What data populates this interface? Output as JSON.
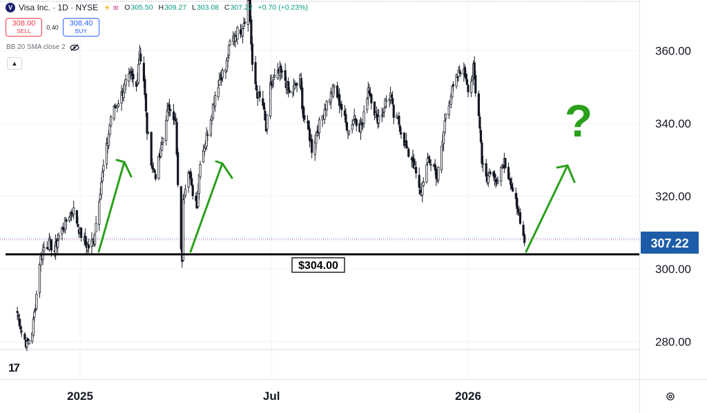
{
  "header": {
    "logo_letter": "V",
    "symbol_title": "Visa Inc. · 1D · NYSE",
    "open_label": "O",
    "open": "305.50",
    "high_label": "H",
    "high": "309.27",
    "low_label": "L",
    "low": "303.08",
    "close_label": "C",
    "close": "307.22",
    "change": "+0.70 (+0.23%)"
  },
  "trade": {
    "sell_price": "308.00",
    "sell_label": "SELL",
    "spread": "0.40",
    "buy_price": "308.40",
    "buy_label": "BUY"
  },
  "indicator": {
    "label": "BB 20 SMA close 2"
  },
  "icons": [
    "visa-logo-icon",
    "sun-icon",
    "wave-icon",
    "eye-off-icon",
    "chevron-up-icon",
    "tradingview-logo-icon",
    "settings-icon"
  ],
  "colors": {
    "up": "#089981",
    "down": "#f23645",
    "candle": "#131722",
    "arrow": "#2aa01b",
    "price_tag": "#1d5ca8"
  },
  "chart_data": {
    "type": "candlestick",
    "y_ticks": [
      "360.00",
      "340.00",
      "320.00",
      "300.00",
      "280.00"
    ],
    "ylim": [
      268,
      380
    ],
    "x_ticks": [
      "2025",
      "Jul",
      "2026"
    ],
    "x_tick_dates": [
      "2025-01-02",
      "2025-07-01",
      "2026-01-02"
    ],
    "last_price": "307.22",
    "last_price_value": 307.22,
    "support_level": 304.0,
    "support_label": "$304.00",
    "annotation_question": "?",
    "series": [
      {
        "date": "2024-11-04",
        "value": 288
      },
      {
        "date": "2024-11-08",
        "value": 283
      },
      {
        "date": "2024-11-13",
        "value": 279
      },
      {
        "date": "2024-11-18",
        "value": 283
      },
      {
        "date": "2024-11-21",
        "value": 290
      },
      {
        "date": "2024-11-25",
        "value": 302
      },
      {
        "date": "2024-11-29",
        "value": 306
      },
      {
        "date": "2024-12-04",
        "value": 307
      },
      {
        "date": "2024-12-09",
        "value": 305
      },
      {
        "date": "2024-12-13",
        "value": 309
      },
      {
        "date": "2024-12-18",
        "value": 312
      },
      {
        "date": "2024-12-23",
        "value": 315
      },
      {
        "date": "2024-12-27",
        "value": 316
      },
      {
        "date": "2025-01-02",
        "value": 310
      },
      {
        "date": "2025-01-07",
        "value": 307
      },
      {
        "date": "2025-01-10",
        "value": 306
      },
      {
        "date": "2025-01-15",
        "value": 308
      },
      {
        "date": "2025-01-21",
        "value": 322
      },
      {
        "date": "2025-01-24",
        "value": 328
      },
      {
        "date": "2025-01-28",
        "value": 335
      },
      {
        "date": "2025-01-31",
        "value": 342
      },
      {
        "date": "2025-02-05",
        "value": 345
      },
      {
        "date": "2025-02-10",
        "value": 348
      },
      {
        "date": "2025-02-14",
        "value": 351
      },
      {
        "date": "2025-02-19",
        "value": 353
      },
      {
        "date": "2025-02-24",
        "value": 350
      },
      {
        "date": "2025-02-27",
        "value": 360
      },
      {
        "date": "2025-03-03",
        "value": 352
      },
      {
        "date": "2025-03-06",
        "value": 338
      },
      {
        "date": "2025-03-11",
        "value": 328
      },
      {
        "date": "2025-03-14",
        "value": 326
      },
      {
        "date": "2025-03-19",
        "value": 332
      },
      {
        "date": "2025-03-24",
        "value": 342
      },
      {
        "date": "2025-03-28",
        "value": 345
      },
      {
        "date": "2025-04-02",
        "value": 340
      },
      {
        "date": "2025-04-04",
        "value": 322
      },
      {
        "date": "2025-04-08",
        "value": 301
      },
      {
        "date": "2025-04-09",
        "value": 320
      },
      {
        "date": "2025-04-14",
        "value": 328
      },
      {
        "date": "2025-04-17",
        "value": 322
      },
      {
        "date": "2025-04-22",
        "value": 318
      },
      {
        "date": "2025-04-25",
        "value": 330
      },
      {
        "date": "2025-04-30",
        "value": 335
      },
      {
        "date": "2025-05-05",
        "value": 342
      },
      {
        "date": "2025-05-09",
        "value": 348
      },
      {
        "date": "2025-05-14",
        "value": 353
      },
      {
        "date": "2025-05-19",
        "value": 355
      },
      {
        "date": "2025-05-23",
        "value": 362
      },
      {
        "date": "2025-05-29",
        "value": 365
      },
      {
        "date": "2025-06-03",
        "value": 366
      },
      {
        "date": "2025-06-06",
        "value": 369
      },
      {
        "date": "2025-06-10",
        "value": 375
      },
      {
        "date": "2025-06-13",
        "value": 355
      },
      {
        "date": "2025-06-18",
        "value": 348
      },
      {
        "date": "2025-06-23",
        "value": 345
      },
      {
        "date": "2025-06-26",
        "value": 338
      },
      {
        "date": "2025-06-30",
        "value": 350
      },
      {
        "date": "2025-07-03",
        "value": 352
      },
      {
        "date": "2025-07-09",
        "value": 354
      },
      {
        "date": "2025-07-14",
        "value": 352
      },
      {
        "date": "2025-07-18",
        "value": 348
      },
      {
        "date": "2025-07-23",
        "value": 350
      },
      {
        "date": "2025-07-28",
        "value": 352
      },
      {
        "date": "2025-07-31",
        "value": 342
      },
      {
        "date": "2025-08-05",
        "value": 338
      },
      {
        "date": "2025-08-08",
        "value": 333
      },
      {
        "date": "2025-08-13",
        "value": 338
      },
      {
        "date": "2025-08-18",
        "value": 342
      },
      {
        "date": "2025-08-21",
        "value": 345
      },
      {
        "date": "2025-08-26",
        "value": 348
      },
      {
        "date": "2025-08-29",
        "value": 350
      },
      {
        "date": "2025-09-04",
        "value": 345
      },
      {
        "date": "2025-09-09",
        "value": 340
      },
      {
        "date": "2025-09-12",
        "value": 338
      },
      {
        "date": "2025-09-17",
        "value": 342
      },
      {
        "date": "2025-09-22",
        "value": 339
      },
      {
        "date": "2025-09-25",
        "value": 340
      },
      {
        "date": "2025-09-30",
        "value": 350
      },
      {
        "date": "2025-10-03",
        "value": 347
      },
      {
        "date": "2025-10-08",
        "value": 341
      },
      {
        "date": "2025-10-13",
        "value": 343
      },
      {
        "date": "2025-10-16",
        "value": 346
      },
      {
        "date": "2025-10-21",
        "value": 348
      },
      {
        "date": "2025-10-24",
        "value": 342
      },
      {
        "date": "2025-10-29",
        "value": 340
      },
      {
        "date": "2025-11-03",
        "value": 335
      },
      {
        "date": "2025-11-06",
        "value": 332
      },
      {
        "date": "2025-11-11",
        "value": 330
      },
      {
        "date": "2025-11-14",
        "value": 326
      },
      {
        "date": "2025-11-18",
        "value": 320
      },
      {
        "date": "2025-11-21",
        "value": 325
      },
      {
        "date": "2025-11-26",
        "value": 330
      },
      {
        "date": "2025-12-01",
        "value": 328
      },
      {
        "date": "2025-12-04",
        "value": 325
      },
      {
        "date": "2025-12-09",
        "value": 335
      },
      {
        "date": "2025-12-12",
        "value": 343
      },
      {
        "date": "2025-12-17",
        "value": 348
      },
      {
        "date": "2025-12-22",
        "value": 352
      },
      {
        "date": "2025-12-26",
        "value": 355
      },
      {
        "date": "2025-12-31",
        "value": 353
      },
      {
        "date": "2026-01-02",
        "value": 350
      },
      {
        "date": "2026-01-05",
        "value": 352
      },
      {
        "date": "2026-01-07",
        "value": 355
      },
      {
        "date": "2026-01-09",
        "value": 348
      },
      {
        "date": "2026-01-13",
        "value": 340
      },
      {
        "date": "2026-01-15",
        "value": 330
      },
      {
        "date": "2026-01-20",
        "value": 325
      },
      {
        "date": "2026-01-23",
        "value": 327
      },
      {
        "date": "2026-01-28",
        "value": 324
      },
      {
        "date": "2026-02-02",
        "value": 328
      },
      {
        "date": "2026-02-05",
        "value": 330
      },
      {
        "date": "2026-02-10",
        "value": 325
      },
      {
        "date": "2026-02-13",
        "value": 320
      },
      {
        "date": "2026-02-18",
        "value": 317
      },
      {
        "date": "2026-02-20",
        "value": 311
      },
      {
        "date": "2026-02-24",
        "value": 307.22
      }
    ]
  }
}
